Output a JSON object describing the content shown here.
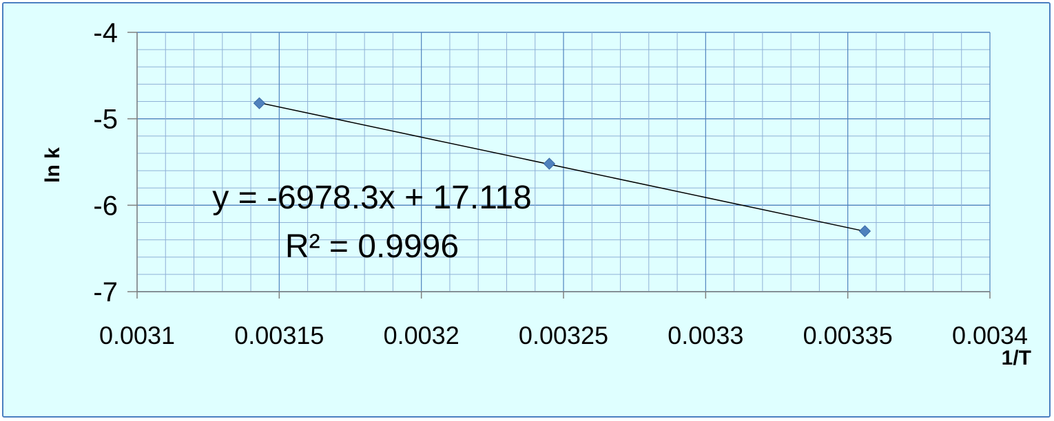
{
  "chart_data": {
    "type": "scatter",
    "xlabel": "1/T",
    "ylabel": "ln k",
    "xlim": [
      0.0031,
      0.0034
    ],
    "ylim": [
      -7,
      -4
    ],
    "x_ticks": [
      "0.0031",
      "0.00315",
      "0.0032",
      "0.00325",
      "0.0033",
      "0.00335",
      "0.0034"
    ],
    "y_ticks": [
      "-4",
      "-5",
      "-6",
      "-7"
    ],
    "grid": "on",
    "legend": "none",
    "series": [
      {
        "x": [
          0.003143,
          0.003245,
          0.003356
        ],
        "y": [
          -4.82,
          -5.52,
          -6.3
        ],
        "marker": "diamond",
        "color": "#4f81bd"
      }
    ],
    "trendline": {
      "type": "linear",
      "slope": -6978.3,
      "intercept": 17.118,
      "color": "#000000"
    },
    "annotations": {
      "equation": "y = -6978.3x + 17.118",
      "r_squared": "R² = 0.9996"
    },
    "colors": {
      "background": "#dfffff",
      "border": "#4a7fc1",
      "grid_major": "#4f81bd",
      "grid_minor": "#8fb0d6",
      "axis": "#7f7f7f"
    }
  }
}
